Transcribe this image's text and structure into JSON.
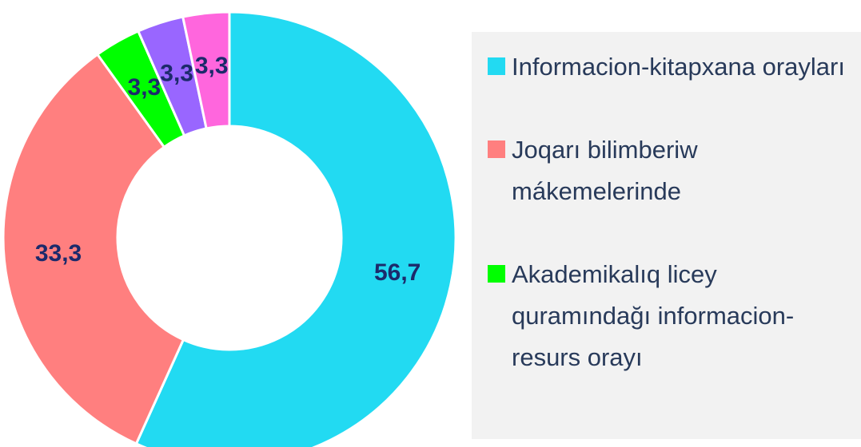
{
  "chart_data": {
    "type": "donut",
    "categories": [
      "Informacion-kitapxana orayları",
      "Joqarı bilimberiw mákemelerinde",
      "Akademikalıq licey quramındağı informacion-resurs orayı",
      null,
      null
    ],
    "values": [
      56.7,
      33.3,
      3.3,
      3.3,
      3.3
    ],
    "value_labels": [
      "56,7",
      "33,3",
      "3,3",
      "3,3",
      "3,3"
    ],
    "colors": [
      "#22daf2",
      "#ff7f7f",
      "#00ff00",
      "#9966ff",
      "#ff66dd"
    ],
    "legend": "right"
  }
}
